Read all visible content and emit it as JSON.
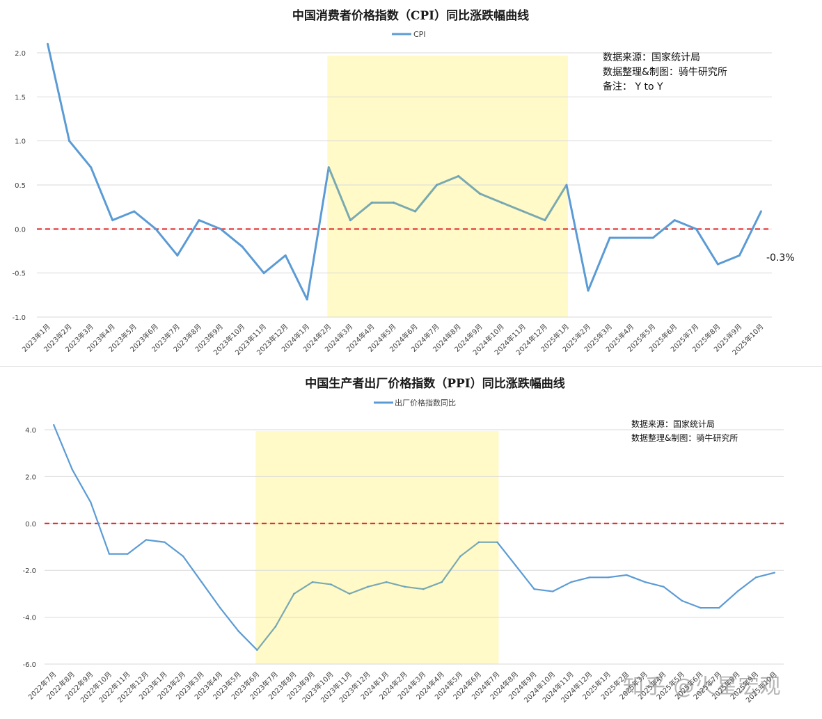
{
  "colors": {
    "line": "#5b9bd5",
    "line_on_highlight": "#7aaab0",
    "zero_line": "#e01f1f",
    "highlight": "#fffac8",
    "grid": "#d9d9d9"
  },
  "cpi": {
    "legend": "CPI",
    "notes": [
      "数据来源：国家统计局",
      "数据整理&制图：骑牛研究所",
      "备注：  Y to Y"
    ],
    "annotation": "-0.3%"
  },
  "ppi": {
    "legend": "出厂价格指数同比",
    "notes": [
      "数据来源：国家统计局",
      "数据整理&制图：骑牛研究所"
    ]
  },
  "watermark": "知乎 @火星宏观",
  "chart_data": [
    {
      "type": "line",
      "title": "中国消费者价格指数（CPI）同比涨跌幅曲线",
      "categories": [
        "2023年1月",
        "2023年2月",
        "2023年3月",
        "2023年4月",
        "2023年5月",
        "2023年6月",
        "2023年7月",
        "2023年8月",
        "2023年9月",
        "2023年10月",
        "2023年11月",
        "2023年12月",
        "2024年1月",
        "2024年2月",
        "2024年3月",
        "2024年4月",
        "2024年5月",
        "2024年6月",
        "2024年7月",
        "2024年8月",
        "2024年9月",
        "2024年10月",
        "2024年11月",
        "2024年12月",
        "2025年1月",
        "2025年2月",
        "2025年3月",
        "2025年4月",
        "2025年5月",
        "2025年6月",
        "2025年7月",
        "2025年8月",
        "2025年9月",
        "2025年10月"
      ],
      "series": [
        {
          "name": "CPI",
          "values": [
            2.1,
            1.0,
            0.7,
            0.1,
            0.2,
            0.0,
            -0.3,
            0.1,
            0.0,
            -0.2,
            -0.5,
            -0.3,
            -0.8,
            0.7,
            0.1,
            0.3,
            0.3,
            0.2,
            0.5,
            0.6,
            0.4,
            0.3,
            0.2,
            0.1,
            0.5,
            -0.7,
            -0.1,
            -0.1,
            -0.1,
            0.1,
            0.0,
            -0.4,
            -0.3,
            0.2
          ]
        }
      ],
      "yticks": [
        "2.0",
        "1.5",
        "1.0",
        "0.5",
        "0.0",
        "-0.5",
        "-1.0"
      ],
      "ylim": [
        -1.0,
        2.0
      ],
      "reference_line": 0.0,
      "highlight_range": [
        "2024年2月",
        "2025年1月"
      ],
      "legend_position": "top-center",
      "grid": true
    },
    {
      "type": "line",
      "title": "中国生产者出厂价格指数（PPI）同比涨跌幅曲线",
      "categories": [
        "2022年7月",
        "2022年8月",
        "2022年9月",
        "2022年10月",
        "2022年11月",
        "2022年12月",
        "2023年1月",
        "2023年2月",
        "2023年3月",
        "2023年4月",
        "2023年5月",
        "2023年6月",
        "2023年7月",
        "2023年8月",
        "2023年9月",
        "2023年10月",
        "2023年11月",
        "2023年12月",
        "2024年1月",
        "2024年2月",
        "2024年3月",
        "2024年4月",
        "2024年5月",
        "2024年6月",
        "2024年7月",
        "2024年8月",
        "2024年9月",
        "2024年10月",
        "2024年11月",
        "2024年12月",
        "2025年1月",
        "2025年2月",
        "2025年3月",
        "2025年4月",
        "2025年5月",
        "2025年6月",
        "2025年7月",
        "2025年8月",
        "2025年9月",
        "2025年10月"
      ],
      "series": [
        {
          "name": "出厂价格指数同比",
          "values": [
            4.2,
            2.3,
            0.9,
            -1.3,
            -1.3,
            -0.7,
            -0.8,
            -1.4,
            -2.5,
            -3.6,
            -4.6,
            -5.4,
            -4.4,
            -3.0,
            -2.5,
            -2.6,
            -3.0,
            -2.7,
            -2.5,
            -2.7,
            -2.8,
            -2.5,
            -1.4,
            -0.8,
            -0.8,
            -1.8,
            -2.8,
            -2.9,
            -2.5,
            -2.3,
            -2.3,
            -2.2,
            -2.5,
            -2.7,
            -3.3,
            -3.6,
            -3.6,
            -2.9,
            -2.3,
            -2.1
          ]
        }
      ],
      "yticks": [
        "4.0",
        "2.0",
        "0.0",
        "-2.0",
        "-4.0",
        "-6.0"
      ],
      "ylim": [
        -6.0,
        4.0
      ],
      "reference_line": 0.0,
      "highlight_range": [
        "2023年6月",
        "2024年7月"
      ],
      "legend_position": "top-center",
      "grid": true
    }
  ]
}
